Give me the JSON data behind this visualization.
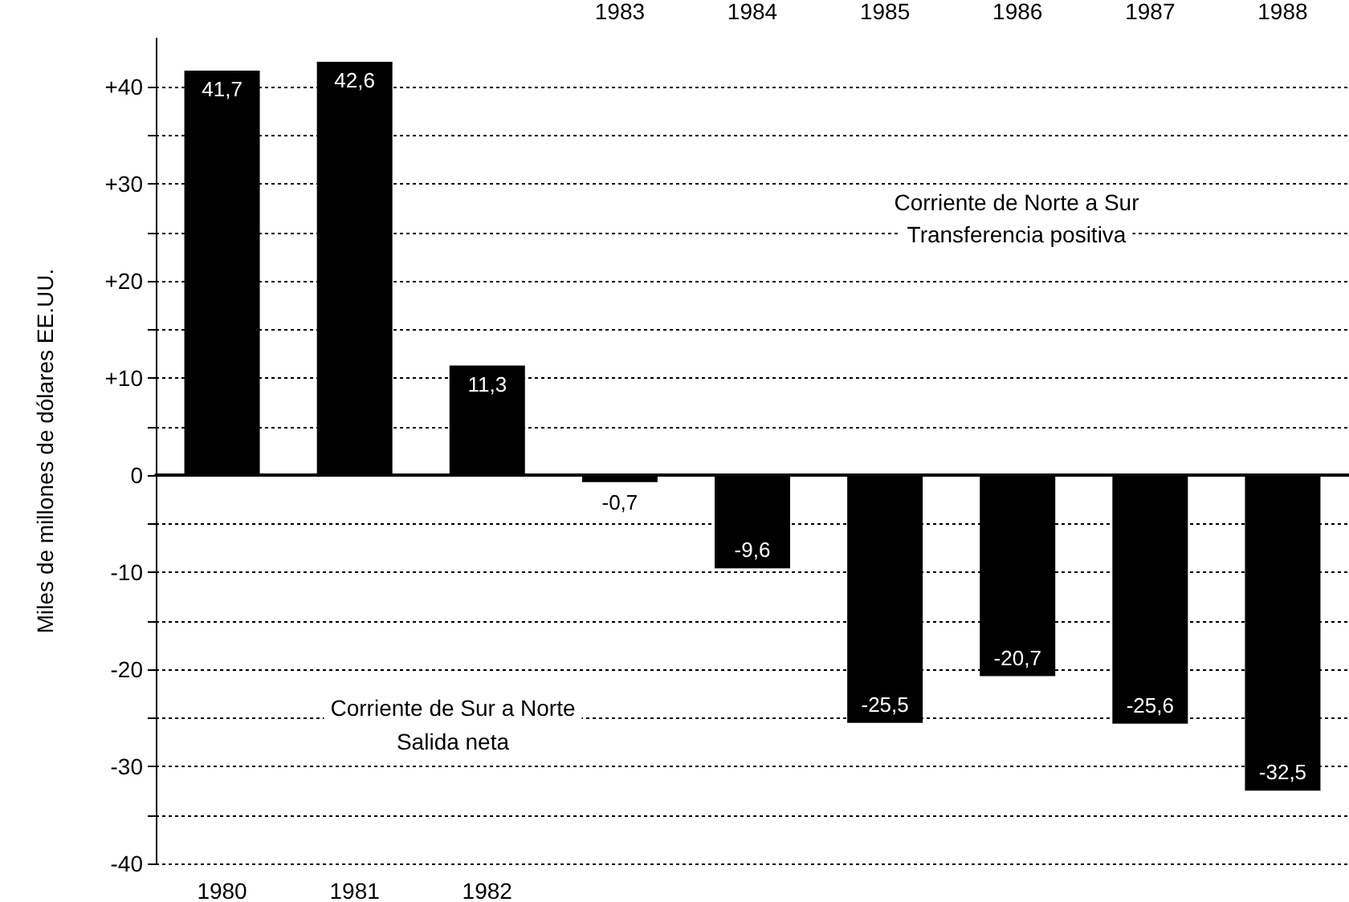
{
  "chart_data": {
    "type": "bar",
    "ylabel": "Miles de millones de dólares EE.UU.",
    "categories": [
      "1980",
      "1981",
      "1982",
      "1983",
      "1984",
      "1985",
      "1986",
      "1987",
      "1988"
    ],
    "values": [
      41.7,
      42.6,
      11.3,
      -0.7,
      -9.6,
      -25.5,
      -20.7,
      -25.6,
      -32.5
    ],
    "value_labels": [
      "41,7",
      "42,6",
      "11,3",
      "-0,7",
      "-9,6",
      "-25,5",
      "-20,7",
      "-25,6",
      "-32,5"
    ],
    "color": "#000000",
    "ylim": [
      -40,
      45
    ],
    "yticks": [
      {
        "value": -40,
        "label": "-40"
      },
      {
        "value": -35,
        "label": null
      },
      {
        "value": -30,
        "label": "-30"
      },
      {
        "value": -25,
        "label": null
      },
      {
        "value": -20,
        "label": "-20"
      },
      {
        "value": -15,
        "label": null
      },
      {
        "value": -10,
        "label": "-10"
      },
      {
        "value": -5,
        "label": null
      },
      {
        "value": 0,
        "label": "0"
      },
      {
        "value": 5,
        "label": null
      },
      {
        "value": 10,
        "label": "+10"
      },
      {
        "value": 15,
        "label": null
      },
      {
        "value": 20,
        "label": "+20"
      },
      {
        "value": 25,
        "label": null
      },
      {
        "value": 30,
        "label": "+30"
      },
      {
        "value": 35,
        "label": null
      },
      {
        "value": 40,
        "label": "+40"
      }
    ],
    "grid": "y",
    "annotations": [
      "Corriente de Norte a Sur",
      "Transferencia positiva",
      "Corriente de Sur a Norte",
      "Salida neta"
    ]
  }
}
